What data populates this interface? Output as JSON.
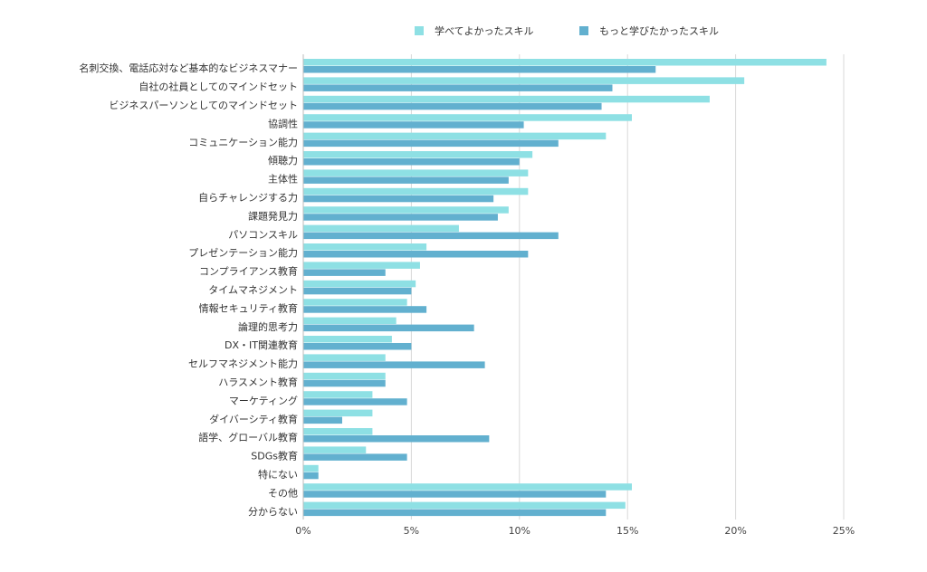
{
  "chart_data": {
    "type": "bar",
    "orientation": "horizontal",
    "title": "",
    "xlabel": "",
    "ylabel": "",
    "xlim": [
      0,
      25
    ],
    "x_ticks": [
      0,
      5,
      10,
      15,
      20,
      25
    ],
    "x_tick_labels": [
      "0%",
      "5%",
      "10%",
      "15%",
      "20%",
      "25%"
    ],
    "grid": "vertical",
    "legend_position": "top",
    "categories": [
      "名刺交換、電話応対など基本的なビジネスマナー",
      "自社の社員としてのマインドセット",
      "ビジネスパーソンとしてのマインドセット",
      "協調性",
      "コミュニケーション能力",
      "傾聴力",
      "主体性",
      "自らチャレンジする力",
      "課題発見力",
      "パソコンスキル",
      "プレゼンテーション能力",
      "コンプライアンス教育",
      "タイムマネジメント",
      "情報セキュリティ教育",
      "論理的思考力",
      "DX・IT関連教育",
      "セルフマネジメント能力",
      "ハラスメント教育",
      "マーケティング",
      "ダイバーシティ教育",
      "語学、グローバル教育",
      "SDGs教育",
      "特にない",
      "その他",
      "分からない"
    ],
    "series": [
      {
        "name": "学べてよかったスキル",
        "color": "#8ee0e4",
        "values": [
          24.2,
          20.4,
          18.8,
          15.2,
          14.0,
          10.6,
          10.4,
          10.4,
          9.5,
          7.2,
          5.7,
          5.4,
          5.2,
          4.8,
          4.3,
          4.1,
          3.8,
          3.8,
          3.2,
          3.2,
          3.2,
          2.9,
          0.7,
          15.2,
          14.9
        ]
      },
      {
        "name": "もっと学びたかったスキル",
        "color": "#62b0cf",
        "values": [
          16.3,
          14.3,
          13.8,
          10.2,
          11.8,
          10.0,
          9.5,
          8.8,
          9.0,
          11.8,
          10.4,
          3.8,
          5.0,
          5.7,
          7.9,
          5.0,
          8.4,
          3.8,
          4.8,
          1.8,
          8.6,
          4.8,
          0.7,
          14.0,
          14.0
        ]
      }
    ]
  }
}
